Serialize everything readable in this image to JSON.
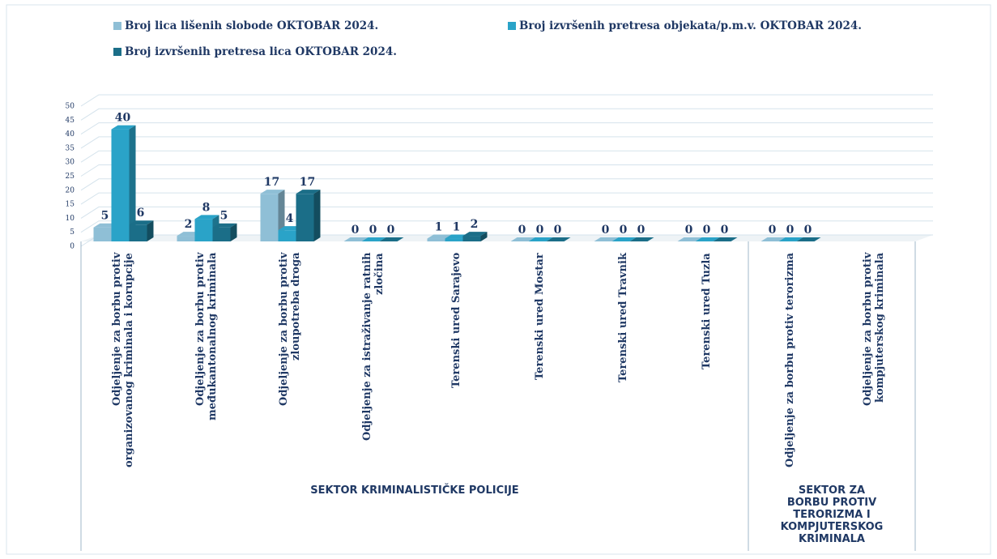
{
  "chart_data": {
    "type": "bar3d",
    "categories": [
      "Odjeljenje za borbu protiv organizovanog kriminala i korupcije",
      "Odjeljenje za borbu protiv međukantonalnog kriminala",
      "Odjeljenje za borbu protiv zloupotreba droga",
      "Odjeljenje za istraživanje ratnih zločina",
      "Terenski ured Sarajevo",
      "Terenski ured Mostar",
      "Terenski ured Travnik",
      "Terenski ured Tuzla",
      "Odjeljenje za  borbu protiv terorizma",
      "Odjeljenje za borbu protiv kompjuterskog kriminala"
    ],
    "x_groups": [
      {
        "label": "SEKTOR KRIMINALISTIČKE POLICIJE",
        "count": 8
      },
      {
        "label": "SEKTOR ZA BORBU PROTIV TERORIZMA I KOMPJUTERSKOG KRIMINALA",
        "count": 2
      }
    ],
    "series": [
      {
        "name": "Broj lica lišenih slobode OKTOBAR  2024.",
        "color": "#8fbfd6",
        "values": [
          5,
          2,
          17,
          0,
          1,
          0,
          0,
          0,
          0,
          null
        ]
      },
      {
        "name": "Broj izvršenih pretresa objekata/p.m.v. OKTOBAR  2024.",
        "color": "#2aa3c8",
        "values": [
          40,
          8,
          4,
          0,
          1,
          0,
          0,
          0,
          0,
          null
        ]
      },
      {
        "name": "Broj izvršenih pretresa lica OKTOBAR  2024.",
        "color": "#1b6e88",
        "values": [
          6,
          5,
          17,
          0,
          2,
          0,
          0,
          0,
          0,
          null
        ]
      }
    ],
    "ylim": [
      0,
      50
    ],
    "yticks": [
      0,
      5,
      10,
      15,
      20,
      25,
      30,
      35,
      40,
      45,
      50
    ],
    "grid": true
  }
}
